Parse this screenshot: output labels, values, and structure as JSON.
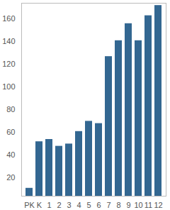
{
  "chart_data": {
    "type": "bar",
    "categories": [
      "PK",
      "K",
      "1",
      "2",
      "3",
      "4",
      "5",
      "6",
      "7",
      "8",
      "9",
      "10",
      "11",
      "12"
    ],
    "values": [
      11,
      52,
      54,
      48,
      50,
      61,
      70,
      68,
      127,
      141,
      156,
      141,
      163,
      172
    ],
    "color": "#336791",
    "ylim": [
      4,
      174
    ],
    "yticks": [
      20,
      40,
      60,
      80,
      100,
      120,
      140,
      160
    ],
    "grid": false
  }
}
